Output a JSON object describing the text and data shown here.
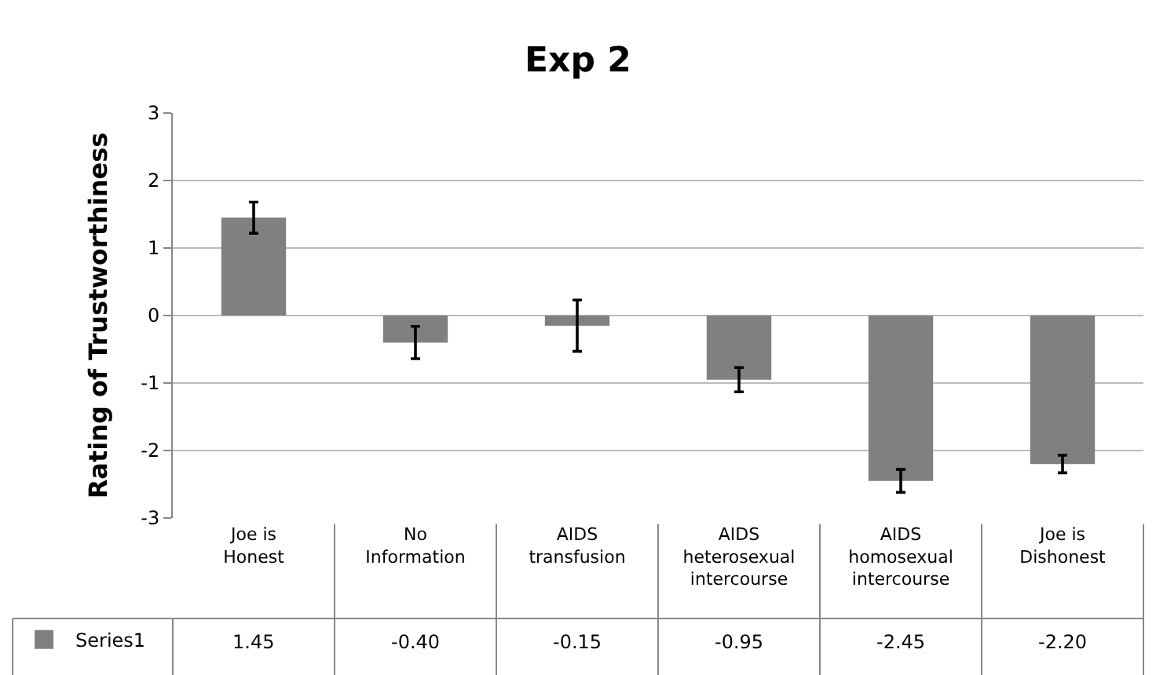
{
  "chart_data": {
    "type": "bar",
    "title": "Exp 2",
    "ylabel": "Rating of Trustworthiness",
    "categories": [
      "Joe is Honest",
      "No Information",
      "AIDS transfusion",
      "AIDS heterosexual intercourse",
      "AIDS homosexual intercourse",
      "Joe is Dishonest"
    ],
    "series": [
      {
        "name": "Series1",
        "color": "#808080",
        "values": [
          1.45,
          -0.4,
          -0.15,
          -0.95,
          -2.45,
          -2.2
        ],
        "errors": [
          0.23,
          0.24,
          0.38,
          0.18,
          0.17,
          0.13
        ],
        "value_labels": [
          "1.45",
          "-0.40",
          "-0.15",
          "-0.95",
          "-2.45",
          "-2.20"
        ]
      }
    ],
    "ylim": [
      -3,
      3
    ],
    "yticks": [
      -3,
      -2,
      -1,
      0,
      1,
      2,
      3
    ],
    "grid": "y",
    "legend": "bottom left"
  }
}
